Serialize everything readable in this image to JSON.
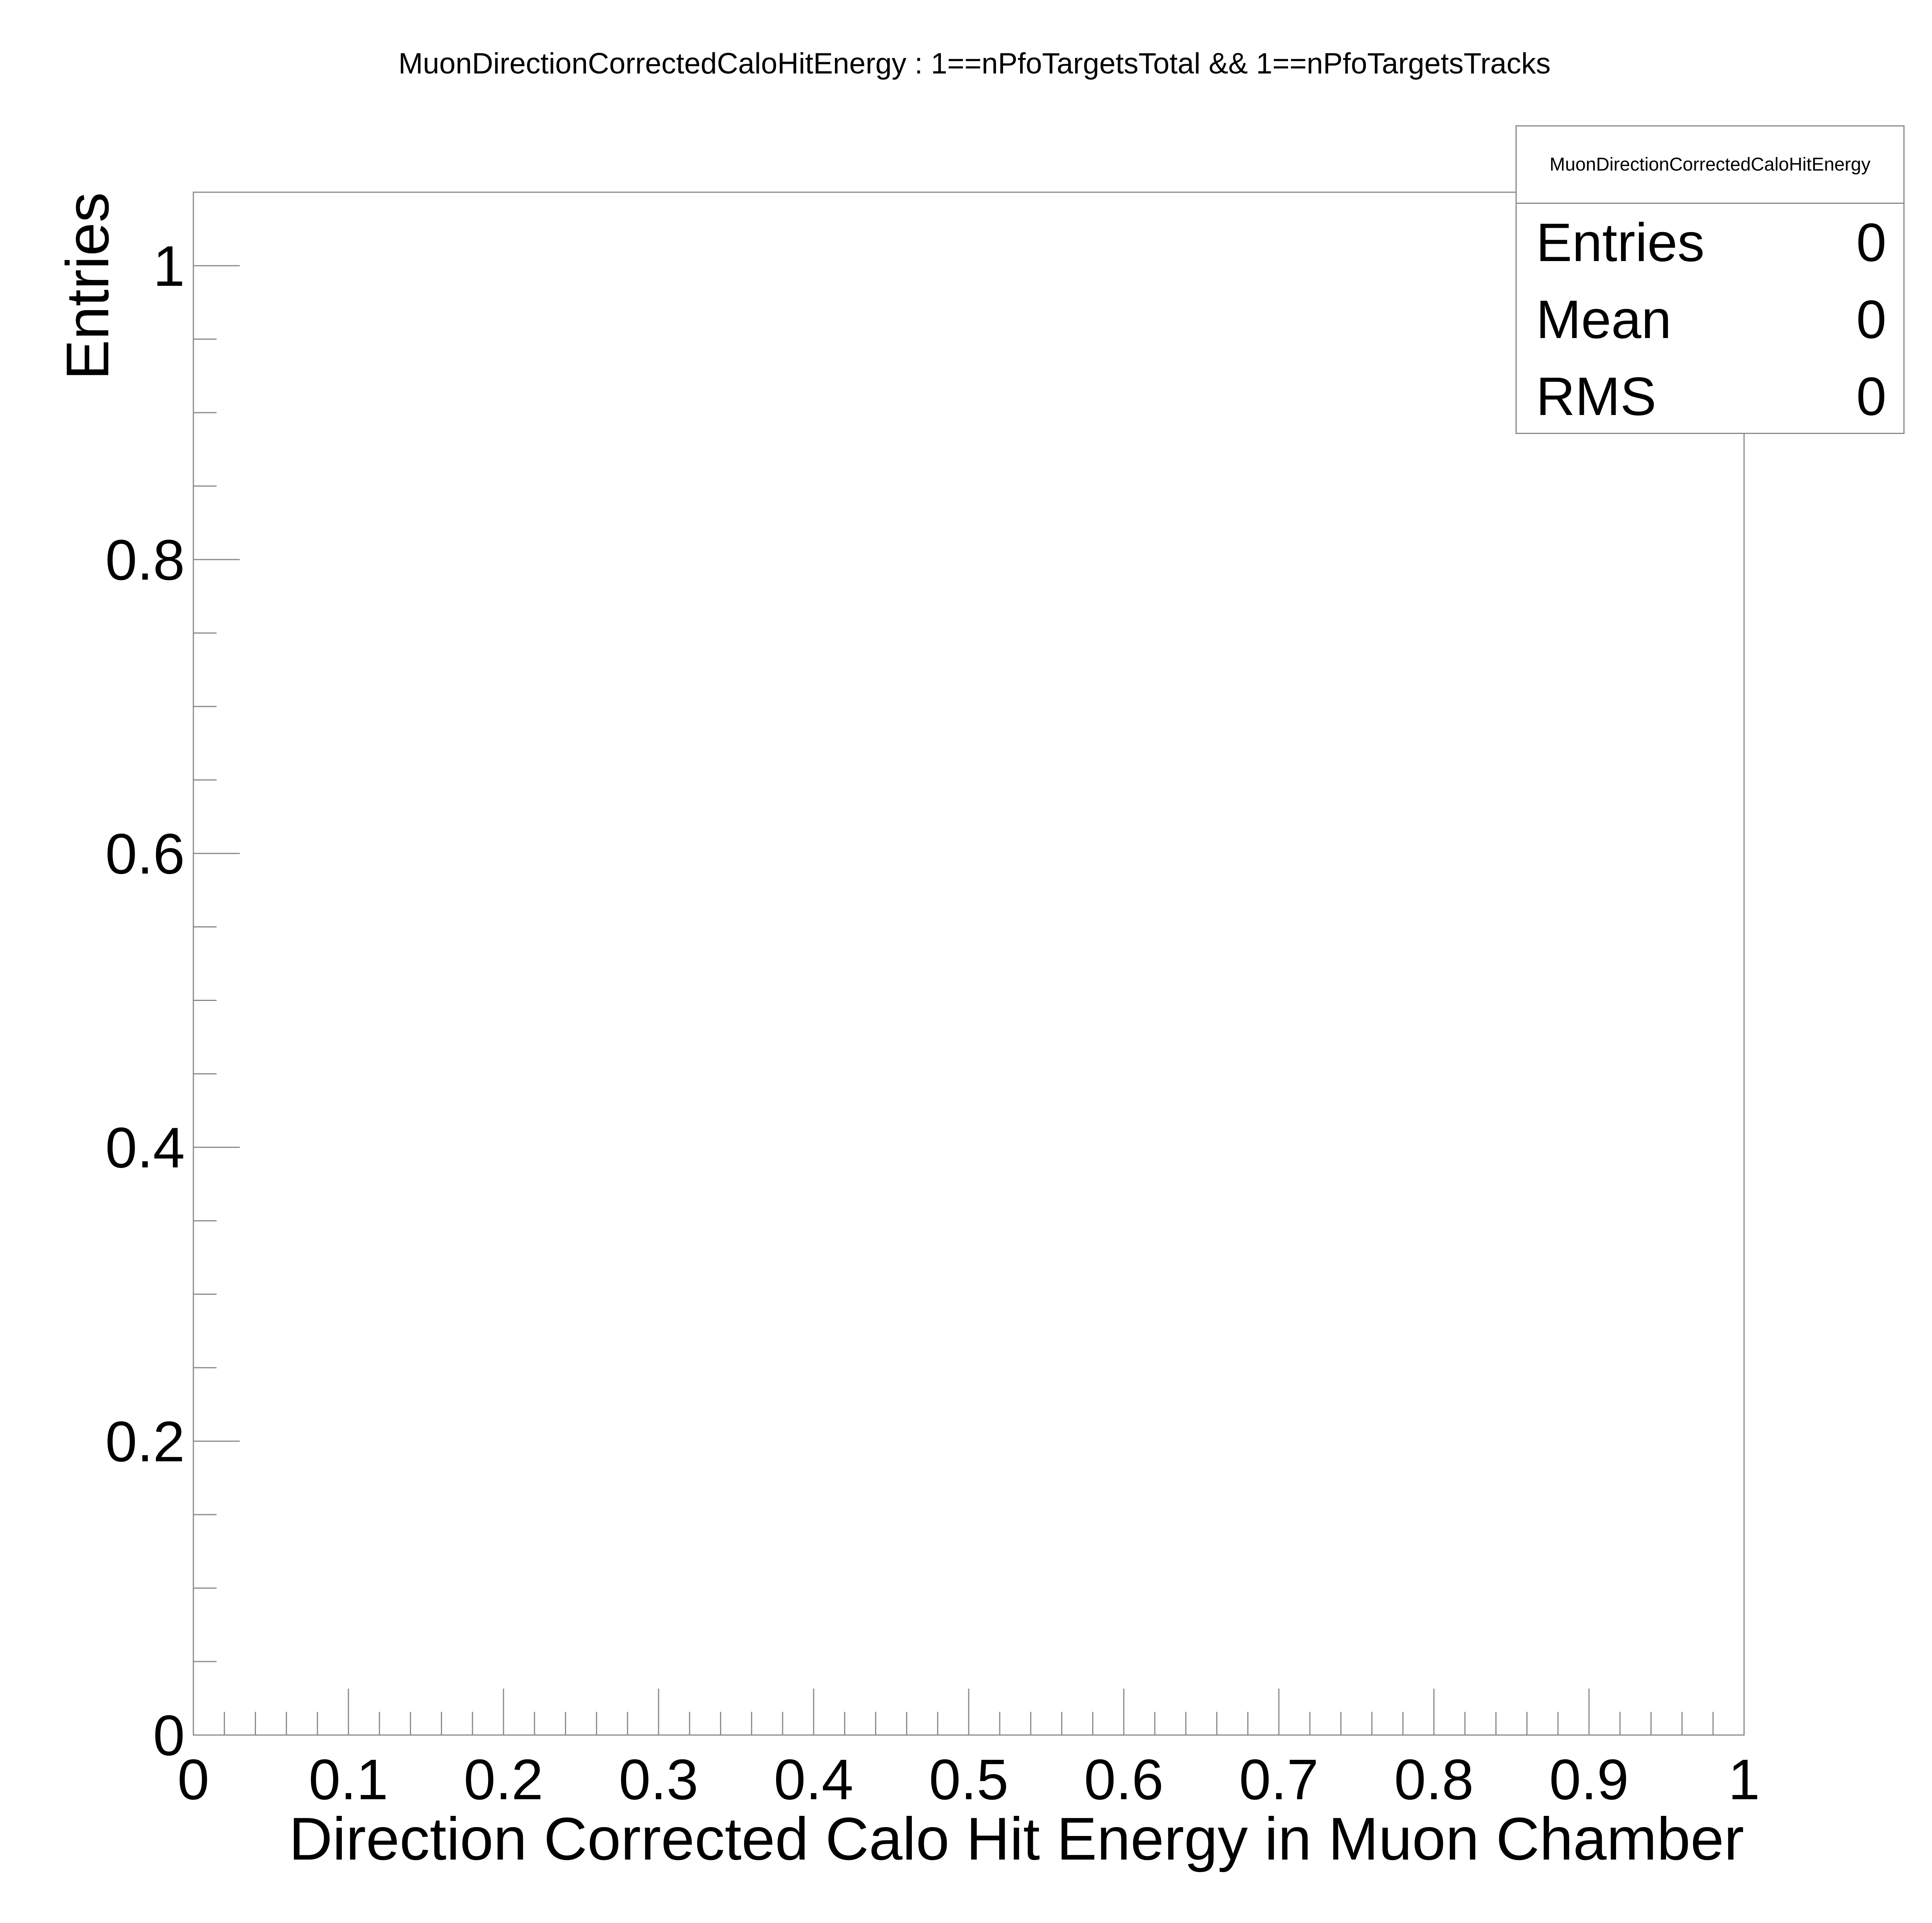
{
  "chart_data": {
    "type": "bar",
    "title": "MuonDirectionCorrectedCaloHitEnergy : 1==nPfoTargetsTotal && 1==nPfoTargetsTracks",
    "xlabel": "Direction Corrected Calo Hit Energy in Muon Chamber",
    "ylabel": "Entries",
    "xlim": [
      0,
      1
    ],
    "ylim": [
      0,
      1.05
    ],
    "x_ticks": [
      "0",
      "0.1",
      "0.2",
      "0.3",
      "0.4",
      "0.5",
      "0.6",
      "0.7",
      "0.8",
      "0.9",
      "1"
    ],
    "y_ticks": [
      "0",
      "0.2",
      "0.4",
      "0.6",
      "0.8",
      "1"
    ],
    "categories": [],
    "values": [],
    "grid": false,
    "legend": "none",
    "stats_box": {
      "title": "MuonDirectionCorrectedCaloHitEnergy",
      "placement": "top-right",
      "rows": [
        {
          "label": "Entries",
          "value": "0"
        },
        {
          "label": "Mean",
          "value": "0"
        },
        {
          "label": "RMS",
          "value": "0"
        }
      ]
    }
  }
}
